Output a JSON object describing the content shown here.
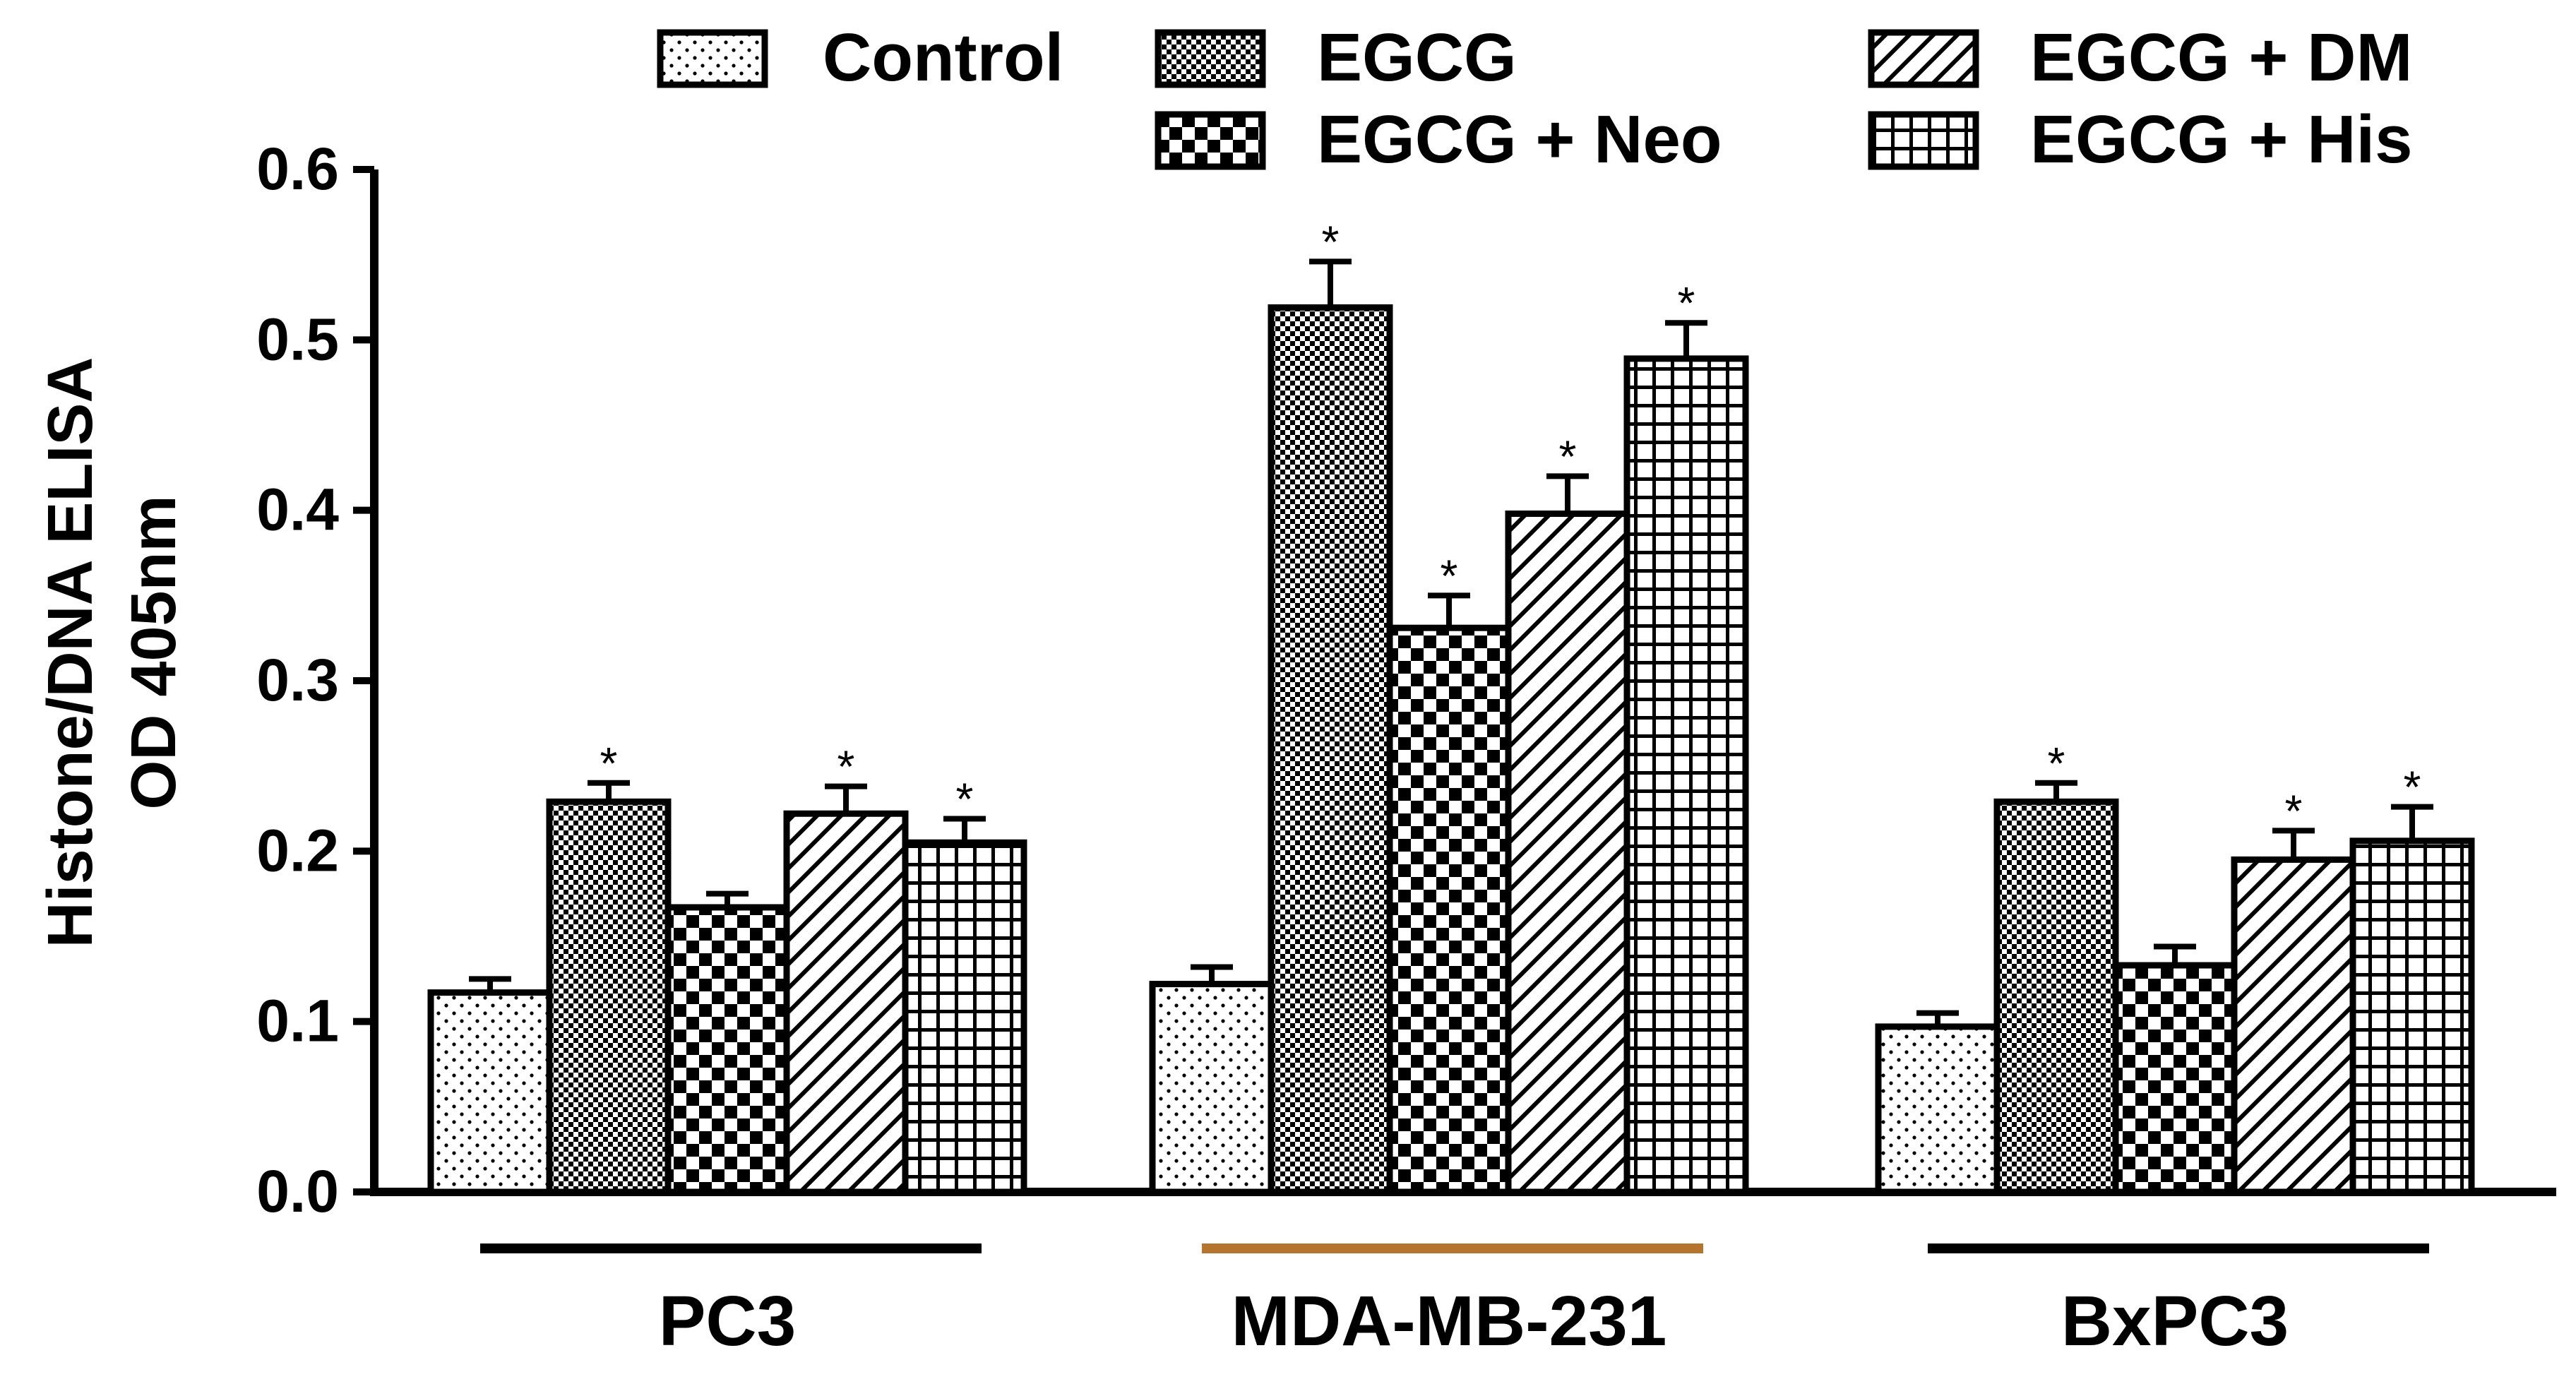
{
  "chart_data": {
    "type": "bar",
    "title": "",
    "xlabel": "",
    "ylabel": [
      "Histone/DNA ELISA",
      "OD 405nm"
    ],
    "ylim": [
      0.0,
      0.6
    ],
    "yticks": [
      "0.0",
      "0.1",
      "0.2",
      "0.3",
      "0.4",
      "0.5",
      "0.6"
    ],
    "grid": false,
    "legend_position": "top",
    "categories": [
      "PC3",
      "MDA-MB-231",
      "BxPC3"
    ],
    "category_underline_colors": [
      "#000000",
      "#b5752d",
      "#000000"
    ],
    "series": [
      {
        "name": "Control",
        "pattern": "dots",
        "values": [
          0.117,
          0.122,
          0.097
        ],
        "errors": [
          0.008,
          0.01,
          0.008
        ],
        "significant": [
          false,
          false,
          false
        ]
      },
      {
        "name": "EGCG",
        "pattern": "fine-check",
        "values": [
          0.229,
          0.519,
          0.229
        ],
        "errors": [
          0.011,
          0.027,
          0.011
        ],
        "significant": [
          true,
          true,
          true
        ]
      },
      {
        "name": "EGCG + Neo",
        "pattern": "checker",
        "values": [
          0.167,
          0.331,
          0.133
        ],
        "errors": [
          0.008,
          0.019,
          0.011
        ],
        "significant": [
          false,
          true,
          false
        ]
      },
      {
        "name": "EGCG + DM",
        "pattern": "diagonal",
        "values": [
          0.222,
          0.398,
          0.195
        ],
        "errors": [
          0.016,
          0.022,
          0.017
        ],
        "significant": [
          true,
          true,
          true
        ]
      },
      {
        "name": "EGCG + His",
        "pattern": "grid",
        "values": [
          0.205,
          0.489,
          0.206
        ],
        "errors": [
          0.014,
          0.021,
          0.02
        ],
        "significant": [
          true,
          true,
          true
        ]
      }
    ],
    "significance_marker": "*"
  }
}
